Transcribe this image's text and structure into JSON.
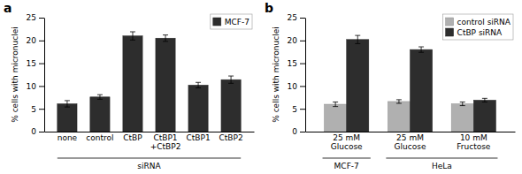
{
  "chart_data": [
    {
      "type": "bar",
      "title": "a",
      "categories": [
        "none",
        "control",
        "CtBP",
        "CtBP1\n+CtBP2",
        "CtBP1",
        "CtBP2"
      ],
      "series": [
        {
          "name": "MCF-7",
          "color": "#2d2d2d",
          "values": [
            6.1,
            7.6,
            21.0,
            20.5,
            10.2,
            11.4
          ],
          "errors": [
            0.7,
            0.5,
            0.9,
            0.7,
            0.6,
            0.8
          ]
        }
      ],
      "ylabel": "% cells with micronuclei",
      "xlabel": "siRNA",
      "ylim": [
        0,
        25
      ],
      "yticks": [
        0,
        5,
        10,
        15,
        20,
        25
      ],
      "legend": "upper right"
    },
    {
      "type": "bar",
      "title": "b",
      "categories": [
        "25 mM\nGlucose",
        "25 mM\nGlucose",
        "10 mM\nFructose"
      ],
      "series": [
        {
          "name": "control siRNA",
          "color": "#b0b0b0",
          "values": [
            6.0,
            6.6,
            6.1
          ],
          "errors": [
            0.5,
            0.4,
            0.4
          ]
        },
        {
          "name": "CtBP siRNA",
          "color": "#2d2d2d",
          "values": [
            20.2,
            18.0,
            6.9
          ],
          "errors": [
            0.9,
            0.6,
            0.4
          ]
        }
      ],
      "ylabel": "% cells with micronuclei",
      "annotations": [
        {
          "text": "MCF-7",
          "span": [
            0,
            0
          ]
        },
        {
          "text": "HeLa",
          "span": [
            1,
            2
          ]
        }
      ],
      "ylim": [
        0,
        25
      ],
      "yticks": [
        0,
        5,
        10,
        15,
        20,
        25
      ],
      "legend": "upper right"
    }
  ]
}
